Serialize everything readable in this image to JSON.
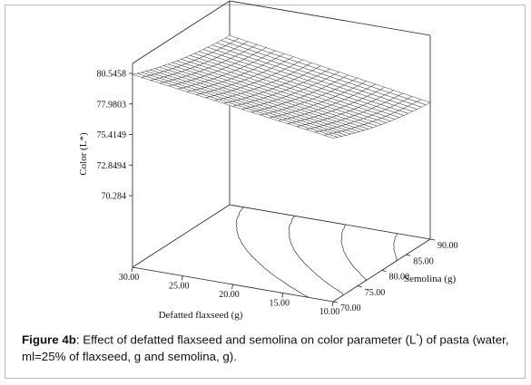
{
  "chart_data": {
    "type": "surface",
    "zlabel": "Color (L*)",
    "xlabel": "Defatted flaxseed (g)",
    "ylabel": "Semolina (g)",
    "x_ticks": [
      "30.00",
      "25.00",
      "20.00",
      "15.00",
      "10.00"
    ],
    "y_ticks": [
      "70.00",
      "75.00",
      "80.00",
      "85.00",
      "90.00"
    ],
    "z_ticks": [
      "80.5458",
      "77.9803",
      "75.4149",
      "72.8494",
      "70.284"
    ],
    "xlim": [
      10,
      30
    ],
    "ylim": [
      70,
      90
    ],
    "zlim": [
      70.284,
      80.5458
    ],
    "contours_on_floor": true,
    "mesh": {
      "x": [
        30,
        27.5,
        25,
        22.5,
        20,
        17.5,
        15,
        12.5,
        10
      ],
      "y": [
        70,
        72.5,
        75,
        77.5,
        80,
        82.5,
        85,
        87.5,
        90
      ]
    }
  },
  "caption": {
    "label": "Figure 4b",
    "text_a": ": Effect of defatted flaxseed and semolina on color parameter (L",
    "sup": "*",
    "text_b": ") of pasta (water, ml=25% of flaxseed, g and semolina, g)."
  }
}
